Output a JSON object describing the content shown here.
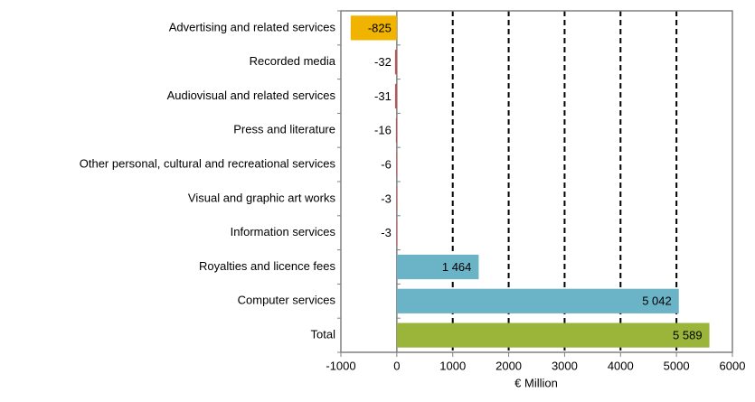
{
  "chart_data": {
    "type": "hbar",
    "categories": [
      "Advertising and related services",
      "Recorded media",
      "Audiovisual and related services",
      "Press and literature",
      "Other personal, cultural and recreational services",
      "Visual and graphic art works",
      "Information services",
      "Royalties and licence fees",
      "Computer services",
      "Total"
    ],
    "values": [
      -825,
      -32,
      -31,
      -16,
      -6,
      -3,
      -3,
      1464,
      5042,
      5589
    ],
    "value_labels": [
      "-825",
      "-32",
      "-31",
      "-16",
      "-6",
      "-3",
      "-3",
      "1 464",
      "5 042",
      "5 589"
    ],
    "colors": [
      "#f0b400",
      "#c0504d",
      "#c0504d",
      "#c0504d",
      "#c0504d",
      "#c0504d",
      "#c0504d",
      "#6bb3c6",
      "#6bb3c6",
      "#9bb53a"
    ],
    "xlabel": "€ Million",
    "xlim": [
      -1000,
      6000
    ],
    "xticks": [
      -1000,
      0,
      1000,
      2000,
      3000,
      4000,
      5000,
      6000
    ],
    "grid": true
  }
}
